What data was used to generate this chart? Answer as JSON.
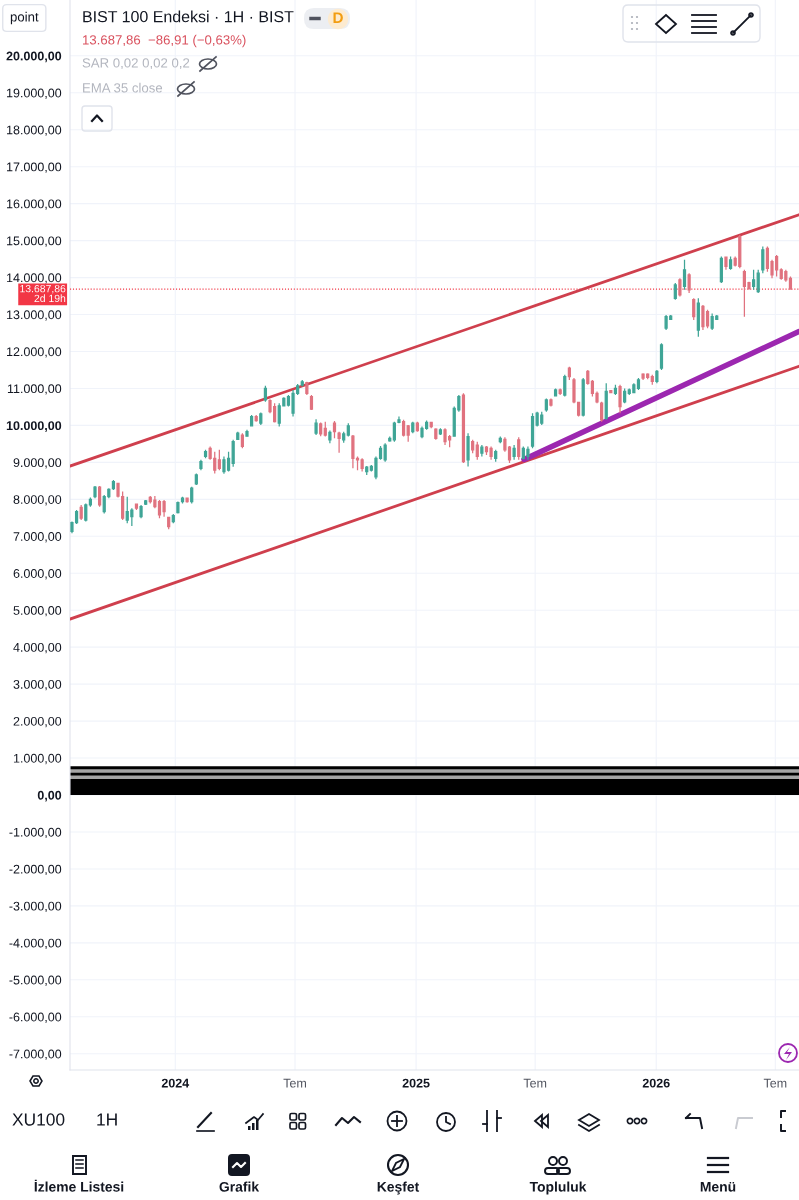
{
  "chart_data": {
    "type": "candlestick",
    "title": "BIST 100 Endeksi · 1H · BIST",
    "subtitle": "13.687,86  −86,91 (−0,63%)",
    "x": [
      "2023-07-28",
      "2023-08-04",
      "2023-08-11",
      "2023-08-18",
      "2023-08-25",
      "2023-09-01",
      "2023-09-08",
      "2023-09-15",
      "2023-09-22",
      "2023-09-29",
      "2023-10-06",
      "2023-10-13",
      "2023-10-20",
      "2023-10-27",
      "2023-11-03",
      "2023-11-10",
      "2023-11-17",
      "2023-11-24",
      "2023-12-01",
      "2023-12-08",
      "2023-12-15",
      "2023-12-22",
      "2023-12-29",
      "2024-01-05",
      "2024-01-12",
      "2024-01-19",
      "2024-01-26",
      "2024-02-02",
      "2024-02-09",
      "2024-02-16",
      "2024-02-23",
      "2024-03-01",
      "2024-03-08",
      "2024-03-15",
      "2024-03-22",
      "2024-03-29",
      "2024-04-05",
      "2024-04-12",
      "2024-04-19",
      "2024-04-26",
      "2024-05-03",
      "2024-05-10",
      "2024-05-17",
      "2024-05-24",
      "2024-05-31",
      "2024-06-07",
      "2024-06-14",
      "2024-06-21",
      "2024-06-28",
      "2024-07-05",
      "2024-07-12",
      "2024-07-19",
      "2024-07-26",
      "2024-08-02",
      "2024-08-09",
      "2024-08-16",
      "2024-08-23",
      "2024-08-30",
      "2024-09-06",
      "2024-09-13",
      "2024-09-20",
      "2024-09-27",
      "2024-10-04",
      "2024-10-11",
      "2024-10-18",
      "2024-10-25",
      "2024-11-01",
      "2024-11-08",
      "2024-11-15",
      "2024-11-22",
      "2024-11-29",
      "2024-12-06",
      "2024-12-13",
      "2024-12-20",
      "2024-12-27",
      "2025-01-03",
      "2025-01-10",
      "2025-01-17",
      "2025-01-24",
      "2025-01-31",
      "2025-02-07",
      "2025-02-14",
      "2025-02-21",
      "2025-02-28",
      "2025-03-07",
      "2025-03-14",
      "2025-03-21",
      "2025-03-28",
      "2025-04-04",
      "2025-04-11",
      "2025-04-18",
      "2025-04-25",
      "2025-05-02",
      "2025-05-09",
      "2025-05-16",
      "2025-05-23",
      "2025-05-30",
      "2025-06-06",
      "2025-06-13",
      "2025-06-20",
      "2025-06-27",
      "2025-07-04",
      "2025-07-11",
      "2025-07-18",
      "2025-07-25",
      "2025-08-01",
      "2025-08-08",
      "2025-08-15",
      "2025-08-22",
      "2025-08-29",
      "2025-09-05",
      "2025-09-12",
      "2025-09-19",
      "2025-09-26",
      "2025-10-03",
      "2025-10-10",
      "2025-10-17",
      "2025-10-24",
      "2025-10-31",
      "2025-11-07",
      "2025-11-14",
      "2025-11-21",
      "2025-11-28",
      "2025-12-05",
      "2025-12-12",
      "2025-12-19",
      "2025-12-26",
      "2026-01-02",
      "2026-01-09",
      "2026-01-16",
      "2026-01-23",
      "2026-01-30",
      "2026-02-06",
      "2026-02-13",
      "2026-02-20",
      "2026-02-27",
      "2026-03-06",
      "2026-03-13",
      "2026-03-20",
      "2026-03-27",
      "2026-04-03",
      "2026-04-10",
      "2026-04-17",
      "2026-04-24",
      "2026-05-01",
      "2026-05-08",
      "2026-05-15",
      "2026-05-22",
      "2026-05-29",
      "2026-06-05",
      "2026-06-12",
      "2026-06-19",
      "2026-06-26",
      "2026-07-03",
      "2026-07-10",
      "2026-07-17",
      "2026-07-24"
    ],
    "ohlc": [
      [
        7130,
        7400,
        7080,
        7370
      ],
      [
        7370,
        7710,
        7330,
        7670
      ],
      [
        7780,
        7850,
        7440,
        7490
      ],
      [
        7440,
        7890,
        7400,
        7850
      ],
      [
        7850,
        8050,
        7800,
        8000
      ],
      [
        8070,
        8360,
        8030,
        8330
      ],
      [
        8330,
        8360,
        7800,
        7850
      ],
      [
        7670,
        8120,
        7620,
        8070
      ],
      [
        8070,
        8300,
        8030,
        8270
      ],
      [
        8290,
        8520,
        8250,
        8480
      ],
      [
        8430,
        8450,
        8050,
        8090
      ],
      [
        8070,
        8210,
        7440,
        7490
      ],
      [
        7440,
        8070,
        7350,
        7670
      ],
      [
        7530,
        7760,
        7280,
        7710
      ],
      [
        7870,
        7890,
        7710,
        7760
      ],
      [
        7530,
        7850,
        7490,
        7800
      ],
      [
        7870,
        7980,
        7850,
        7960
      ],
      [
        8050,
        8090,
        7890,
        7940
      ],
      [
        7980,
        8090,
        7760,
        7800
      ],
      [
        7940,
        7980,
        7490,
        7580
      ],
      [
        7940,
        7980,
        7530,
        7670
      ],
      [
        7510,
        7530,
        7190,
        7260
      ],
      [
        7400,
        7600,
        7350,
        7560
      ],
      [
        7640,
        7940,
        7620,
        7910
      ],
      [
        7940,
        8070,
        7890,
        8030
      ],
      [
        8030,
        8050,
        7910,
        7940
      ],
      [
        7940,
        8340,
        7890,
        8300
      ],
      [
        8420,
        8700,
        8390,
        8660
      ],
      [
        8840,
        9070,
        8790,
        9020
      ],
      [
        9160,
        9340,
        9110,
        9290
      ],
      [
        9380,
        9430,
        9070,
        9110
      ],
      [
        9110,
        9290,
        8700,
        8790
      ],
      [
        9070,
        9340,
        8790,
        8840
      ],
      [
        8750,
        9160,
        8690,
        9070
      ],
      [
        8790,
        9290,
        8750,
        9110
      ],
      [
        8970,
        9610,
        8880,
        9560
      ],
      [
        9620,
        9830,
        9610,
        9790
      ],
      [
        9740,
        9790,
        9380,
        9430
      ],
      [
        9710,
        9880,
        9700,
        9830
      ],
      [
        9990,
        10280,
        9970,
        10240
      ],
      [
        10240,
        10280,
        10100,
        10130
      ],
      [
        10060,
        10350,
        10010,
        10310
      ],
      [
        10690,
        11070,
        10640,
        11000
      ],
      [
        10670,
        10710,
        10330,
        10370
      ],
      [
        10510,
        10600,
        10080,
        10100
      ],
      [
        10060,
        10600,
        9970,
        10530
      ],
      [
        10530,
        10760,
        10510,
        10730
      ],
      [
        10550,
        10820,
        10510,
        10780
      ],
      [
        10330,
        10960,
        10240,
        10870
      ],
      [
        10870,
        11120,
        10820,
        11070
      ],
      [
        11090,
        11230,
        11050,
        11180
      ],
      [
        11160,
        11180,
        10820,
        10870
      ],
      [
        10780,
        10820,
        10420,
        10440
      ],
      [
        9790,
        10170,
        9740,
        10060
      ],
      [
        10040,
        10080,
        9710,
        9770
      ],
      [
        9920,
        10100,
        9700,
        9740
      ],
      [
        9610,
        9860,
        9520,
        9810
      ],
      [
        10060,
        10120,
        9650,
        9830
      ],
      [
        9790,
        9830,
        9260,
        9650
      ],
      [
        9610,
        9830,
        9530,
        9770
      ],
      [
        9740,
        10060,
        9700,
        9990
      ],
      [
        9710,
        9740,
        8840,
        9110
      ],
      [
        9110,
        9160,
        8790,
        9070
      ],
      [
        9070,
        9110,
        8750,
        8840
      ],
      [
        8750,
        8900,
        8660,
        8870
      ],
      [
        8790,
        8930,
        8750,
        8890
      ],
      [
        8610,
        9160,
        8540,
        9110
      ],
      [
        9110,
        9440,
        9070,
        9380
      ],
      [
        9070,
        9520,
        9020,
        9470
      ],
      [
        9580,
        9700,
        9560,
        9650
      ],
      [
        9610,
        10100,
        9560,
        10060
      ],
      [
        10080,
        10240,
        10060,
        10150
      ],
      [
        10100,
        10150,
        9700,
        9740
      ],
      [
        9990,
        10010,
        9560,
        9740
      ],
      [
        9830,
        10100,
        9790,
        10060
      ],
      [
        10060,
        10100,
        9830,
        9860
      ],
      [
        9700,
        9970,
        9650,
        9920
      ],
      [
        9920,
        10130,
        9880,
        10080
      ],
      [
        10080,
        10100,
        9920,
        9970
      ],
      [
        9900,
        9920,
        9610,
        9650
      ],
      [
        9770,
        9920,
        9740,
        9880
      ],
      [
        9880,
        9920,
        9470,
        9560
      ],
      [
        9700,
        9740,
        9410,
        9610
      ],
      [
        9710,
        10510,
        9700,
        10460
      ],
      [
        10420,
        10820,
        10370,
        10780
      ],
      [
        10820,
        10870,
        8980,
        9020
      ],
      [
        9070,
        9790,
        8890,
        9700
      ],
      [
        9560,
        9610,
        9250,
        9340
      ],
      [
        9470,
        9560,
        9070,
        9160
      ],
      [
        9250,
        9470,
        9160,
        9410
      ],
      [
        9410,
        9440,
        9200,
        9290
      ],
      [
        9380,
        9430,
        9070,
        9160
      ],
      [
        9110,
        9340,
        9020,
        9290
      ],
      [
        9560,
        9700,
        9520,
        9650
      ],
      [
        9620,
        9680,
        9290,
        9340
      ],
      [
        9410,
        9440,
        8980,
        9070
      ],
      [
        9160,
        9470,
        9070,
        9380
      ],
      [
        9610,
        9680,
        9070,
        9160
      ],
      [
        9110,
        9430,
        9080,
        9380
      ],
      [
        9160,
        9430,
        9070,
        9350
      ],
      [
        9440,
        10330,
        9380,
        10240
      ],
      [
        10010,
        10370,
        9970,
        10330
      ],
      [
        10060,
        10370,
        10010,
        10280
      ],
      [
        10420,
        10730,
        10370,
        10690
      ],
      [
        10690,
        10730,
        10510,
        10550
      ],
      [
        10800,
        11000,
        10780,
        10960
      ],
      [
        10960,
        11000,
        10820,
        10870
      ],
      [
        10820,
        11370,
        10780,
        11320
      ],
      [
        11550,
        11590,
        11230,
        11320
      ],
      [
        11230,
        11280,
        10600,
        10640
      ],
      [
        10620,
        10640,
        10240,
        10280
      ],
      [
        10280,
        11280,
        10240,
        11230
      ],
      [
        11460,
        11500,
        11100,
        11140
      ],
      [
        11190,
        11230,
        10780,
        10870
      ],
      [
        10870,
        10920,
        10600,
        10640
      ],
      [
        10600,
        10640,
        10100,
        10150
      ],
      [
        10190,
        11140,
        10150,
        10920
      ],
      [
        10940,
        10960,
        10870,
        10890
      ],
      [
        10870,
        11100,
        10820,
        11000
      ],
      [
        11050,
        11100,
        10330,
        10510
      ],
      [
        10640,
        11000,
        10600,
        10920
      ],
      [
        10870,
        11000,
        10820,
        10960
      ],
      [
        10890,
        11140,
        10870,
        11100
      ],
      [
        11000,
        11280,
        10960,
        11230
      ],
      [
        11390,
        11410,
        11230,
        11280
      ],
      [
        11390,
        11410,
        11250,
        11300
      ],
      [
        11320,
        11370,
        11100,
        11190
      ],
      [
        11190,
        11500,
        11140,
        11460
      ],
      [
        11550,
        12220,
        11500,
        12180
      ],
      [
        12630,
        12990,
        12580,
        12940
      ],
      [
        12870,
        12990,
        12850,
        12960
      ],
      [
        13440,
        13850,
        13400,
        13800
      ],
      [
        13940,
        13980,
        13490,
        13530
      ],
      [
        13760,
        14480,
        13670,
        14210
      ],
      [
        14070,
        14120,
        13580,
        13670
      ],
      [
        13400,
        13440,
        12850,
        12940
      ],
      [
        12580,
        13440,
        12400,
        13310
      ],
      [
        13220,
        13260,
        12580,
        12670
      ],
      [
        13080,
        13130,
        12630,
        12690
      ],
      [
        12630,
        13030,
        12580,
        12940
      ],
      [
        12870,
        12990,
        12850,
        12960
      ],
      [
        13890,
        14570,
        13850,
        14520
      ],
      [
        14550,
        14570,
        14210,
        14300
      ],
      [
        14250,
        14570,
        14210,
        14480
      ],
      [
        14520,
        14570,
        14300,
        14340
      ],
      [
        15110,
        15150,
        14250,
        14300
      ],
      [
        14160,
        14210,
        12940,
        13760
      ],
      [
        13860,
        13890,
        13670,
        13710
      ],
      [
        13760,
        14210,
        13670,
        13940
      ],
      [
        13620,
        14210,
        13580,
        14120
      ],
      [
        14210,
        14840,
        14120,
        14750
      ],
      [
        14790,
        14840,
        14160,
        14250
      ],
      [
        14430,
        14480,
        13980,
        14070
      ],
      [
        14570,
        14610,
        14030,
        14210
      ],
      [
        14210,
        14250,
        13940,
        13980
      ],
      [
        14160,
        14210,
        13890,
        13940
      ],
      [
        13980,
        14030,
        13670,
        13690
      ]
    ],
    "colors": [
      "#3fa596",
      "#3fa596",
      "#e0727f",
      "#3fa596",
      "#3fa596",
      "#3fa596",
      "#e0727f",
      "#3fa596",
      "#3fa596",
      "#3fa596",
      "#e0727f",
      "#e0727f",
      "#3fa596",
      "#3fa596",
      "#e0727f",
      "#3fa596",
      "#3fa596",
      "#e0727f",
      "#e0727f",
      "#e0727f",
      "#e0727f",
      "#e0727f",
      "#3fa596",
      "#3fa596",
      "#3fa596",
      "#e0727f",
      "#3fa596",
      "#3fa596",
      "#3fa596",
      "#3fa596",
      "#e0727f",
      "#e0727f",
      "#e0727f",
      "#3fa596",
      "#3fa596",
      "#3fa596",
      "#3fa596",
      "#e0727f",
      "#3fa596",
      "#3fa596",
      "#e0727f",
      "#3fa596",
      "#3fa596",
      "#e0727f",
      "#e0727f",
      "#3fa596",
      "#3fa596",
      "#3fa596",
      "#3fa596",
      "#3fa596",
      "#3fa596",
      "#e0727f",
      "#e0727f",
      "#3fa596",
      "#e0727f",
      "#e0727f",
      "#3fa596",
      "#e0727f",
      "#e0727f",
      "#3fa596",
      "#3fa596",
      "#e0727f",
      "#e0727f",
      "#e0727f",
      "#3fa596",
      "#3fa596",
      "#3fa596",
      "#3fa596",
      "#3fa596",
      "#3fa596",
      "#3fa596",
      "#3fa596",
      "#e0727f",
      "#e0727f",
      "#3fa596",
      "#e0727f",
      "#3fa596",
      "#3fa596",
      "#e0727f",
      "#e0727f",
      "#3fa596",
      "#e0727f",
      "#e0727f",
      "#3fa596",
      "#3fa596",
      "#e0727f",
      "#3fa596",
      "#e0727f",
      "#e0727f",
      "#3fa596",
      "#e0727f",
      "#e0727f",
      "#3fa596",
      "#3fa596",
      "#e0727f",
      "#e0727f",
      "#3fa596",
      "#e0727f",
      "#3fa596",
      "#3fa596",
      "#3fa596",
      "#3fa596",
      "#3fa596",
      "#3fa596",
      "#e0727f",
      "#3fa596",
      "#e0727f",
      "#3fa596",
      "#e0727f",
      "#e0727f",
      "#e0727f",
      "#3fa596",
      "#e0727f",
      "#e0727f",
      "#e0727f",
      "#e0727f",
      "#3fa596",
      "#e0727f",
      "#3fa596",
      "#e0727f",
      "#3fa596",
      "#3fa596",
      "#3fa596",
      "#3fa596",
      "#e0727f",
      "#e0727f",
      "#e0727f",
      "#3fa596",
      "#3fa596",
      "#3fa596",
      "#3fa596",
      "#3fa596",
      "#e0727f",
      "#3fa596",
      "#e0727f",
      "#e0727f",
      "#3fa596",
      "#e0727f",
      "#e0727f",
      "#3fa596",
      "#3fa596",
      "#3fa596",
      "#e0727f",
      "#3fa596",
      "#e0727f",
      "#e0727f",
      "#e0727f",
      "#e0727f",
      "#3fa596",
      "#3fa596",
      "#3fa596",
      "#e0727f",
      "#e0727f",
      "#e0727f",
      "#e0727f",
      "#e0727f",
      "#e0727f"
    ],
    "series": [
      {
        "type": "line",
        "color": "#cf3f4d",
        "x": [
          "2023-07-25",
          "2026-08-06"
        ],
        "values": [
          8900,
          15700
        ]
      },
      {
        "type": "line",
        "color": "#cf3f4d",
        "x": [
          "2023-07-25",
          "2026-08-06"
        ],
        "values": [
          4760,
          11600
        ]
      },
      {
        "type": "line",
        "color": "#9c27b0",
        "x": [
          "2025-06-14",
          "2026-08-06"
        ],
        "values": [
          9080,
          12540
        ]
      }
    ],
    "xlim": [
      "2023-07-25",
      "2026-08-06"
    ],
    "ylim": [
      -7440,
      21510
    ],
    "xticks": [
      {
        "value": "2024-01-01",
        "label": "2024"
      },
      {
        "value": "2024-07-01",
        "label": "Tem"
      },
      {
        "value": "2025-01-01",
        "label": "2025"
      },
      {
        "value": "2025-07-01",
        "label": "Tem"
      },
      {
        "value": "2026-01-01",
        "label": "2026"
      },
      {
        "value": "2026-07-01",
        "label": "Tem"
      }
    ],
    "yticks": [
      {
        "value": -7000,
        "label": "-7.000,00"
      },
      {
        "value": -6000,
        "label": "-6.000,00"
      },
      {
        "value": -5000,
        "label": "-5.000,00"
      },
      {
        "value": -4000,
        "label": "-4.000,00"
      },
      {
        "value": -3000,
        "label": "-3.000,00"
      },
      {
        "value": -2000,
        "label": "-2.000,00"
      },
      {
        "value": -1000,
        "label": "-1.000,00"
      },
      {
        "value": 0,
        "label": "0,00"
      },
      {
        "value": 1000,
        "label": "1.000,00"
      },
      {
        "value": 2000,
        "label": "2.000,00"
      },
      {
        "value": 3000,
        "label": "3.000,00"
      },
      {
        "value": 4000,
        "label": "4.000,00"
      },
      {
        "value": 5000,
        "label": "5.000,00"
      },
      {
        "value": 6000,
        "label": "6.000,00"
      },
      {
        "value": 7000,
        "label": "7.000,00"
      },
      {
        "value": 8000,
        "label": "8.000,00"
      },
      {
        "value": 9000,
        "label": "9.000,00"
      },
      {
        "value": 10000,
        "label": "10.000,00"
      },
      {
        "value": 11000,
        "label": "11.000,00"
      },
      {
        "value": 12000,
        "label": "12.000,00"
      },
      {
        "value": 13000,
        "label": "13.000,00"
      },
      {
        "value": 14000,
        "label": "14.000,00"
      },
      {
        "value": 15000,
        "label": "15.000,00"
      },
      {
        "value": 16000,
        "label": "16.000,00"
      },
      {
        "value": 17000,
        "label": "17.000,00"
      },
      {
        "value": 18000,
        "label": "18.000,00"
      },
      {
        "value": 19000,
        "label": "19.000,00"
      },
      {
        "value": 20000,
        "label": "20.000,00"
      }
    ],
    "grid": true,
    "ref_lines": [
      {
        "axis": "y",
        "value": 13687.86,
        "label": "13.687,86\n2d 19h",
        "color": "#f23645",
        "line_style": "dotted"
      }
    ],
    "bands": [
      {
        "axis": "y",
        "from": 0,
        "to": 780,
        "color": "#000000"
      },
      {
        "axis": "y",
        "from": 430,
        "to": 530,
        "color": "#a6a6a6"
      },
      {
        "axis": "y",
        "from": 600,
        "to": 700,
        "color": "#a6a6a6"
      }
    ],
    "annotations": [
      "point",
      "D",
      "SAR 0,02 0,02 0,2",
      "EMA 35 close",
      "XU100",
      "1H",
      "İzleme Listesi",
      "Grafik",
      "Keşfet",
      "Topluluk",
      "Menü"
    ]
  }
}
